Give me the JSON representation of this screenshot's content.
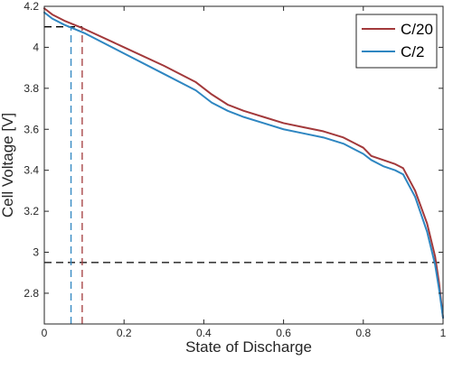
{
  "chart_data": {
    "type": "line",
    "xlabel": "State of Discharge",
    "ylabel": "Cell Voltage [V]",
    "xlim": [
      0,
      1
    ],
    "ylim": [
      2.65,
      4.2
    ],
    "x_ticks": [
      0,
      0.2,
      0.4,
      0.6,
      0.8,
      1
    ],
    "x_tick_labels": [
      "0",
      "0.2",
      "0.4",
      "0.6",
      "0.8",
      "1"
    ],
    "y_ticks": [
      2.8,
      3,
      3.2,
      3.4,
      3.6,
      3.8,
      4,
      4.2
    ],
    "y_tick_labels": [
      "2.8",
      "3",
      "3.2",
      "3.4",
      "3.6",
      "3.8",
      "4",
      "4.2"
    ],
    "grid": false,
    "legend_position": "top-right",
    "series": [
      {
        "name": "C/20",
        "color": "#a2393b",
        "x": [
          0,
          0.02,
          0.05,
          0.1,
          0.2,
          0.3,
          0.38,
          0.42,
          0.46,
          0.5,
          0.55,
          0.6,
          0.65,
          0.7,
          0.75,
          0.78,
          0.8,
          0.82,
          0.85,
          0.88,
          0.9,
          0.93,
          0.96,
          0.98,
          0.99,
          1
        ],
        "y": [
          4.19,
          4.16,
          4.13,
          4.09,
          4.0,
          3.91,
          3.83,
          3.77,
          3.72,
          3.69,
          3.66,
          3.63,
          3.61,
          3.59,
          3.56,
          3.53,
          3.51,
          3.47,
          3.45,
          3.43,
          3.41,
          3.3,
          3.14,
          2.98,
          2.85,
          2.68
        ]
      },
      {
        "name": "C/2",
        "color": "#2e86c1",
        "x": [
          0,
          0.02,
          0.05,
          0.1,
          0.2,
          0.3,
          0.38,
          0.42,
          0.46,
          0.5,
          0.55,
          0.6,
          0.65,
          0.7,
          0.75,
          0.78,
          0.8,
          0.82,
          0.85,
          0.88,
          0.9,
          0.93,
          0.96,
          0.98,
          0.99,
          1
        ],
        "y": [
          4.17,
          4.14,
          4.11,
          4.07,
          3.97,
          3.87,
          3.79,
          3.73,
          3.69,
          3.66,
          3.63,
          3.6,
          3.58,
          3.56,
          3.53,
          3.5,
          3.48,
          3.45,
          3.42,
          3.4,
          3.38,
          3.27,
          3.1,
          2.94,
          2.82,
          2.68
        ]
      }
    ],
    "reference_lines": [
      {
        "kind": "horizontal",
        "y": 4.1,
        "x_from": 0,
        "x_to": 0.095,
        "color": "#000000",
        "style": "dashed"
      },
      {
        "kind": "horizontal",
        "y": 2.95,
        "x_from": 0,
        "x_to": 1,
        "color": "#000000",
        "style": "dashed"
      },
      {
        "kind": "vertical",
        "x": 0.067,
        "y_from": 2.65,
        "y_to": 4.1,
        "color": "#2e86c1",
        "style": "dashed"
      },
      {
        "kind": "vertical",
        "x": 0.095,
        "y_from": 2.65,
        "y_to": 4.1,
        "color": "#a2393b",
        "style": "dashed"
      }
    ]
  }
}
